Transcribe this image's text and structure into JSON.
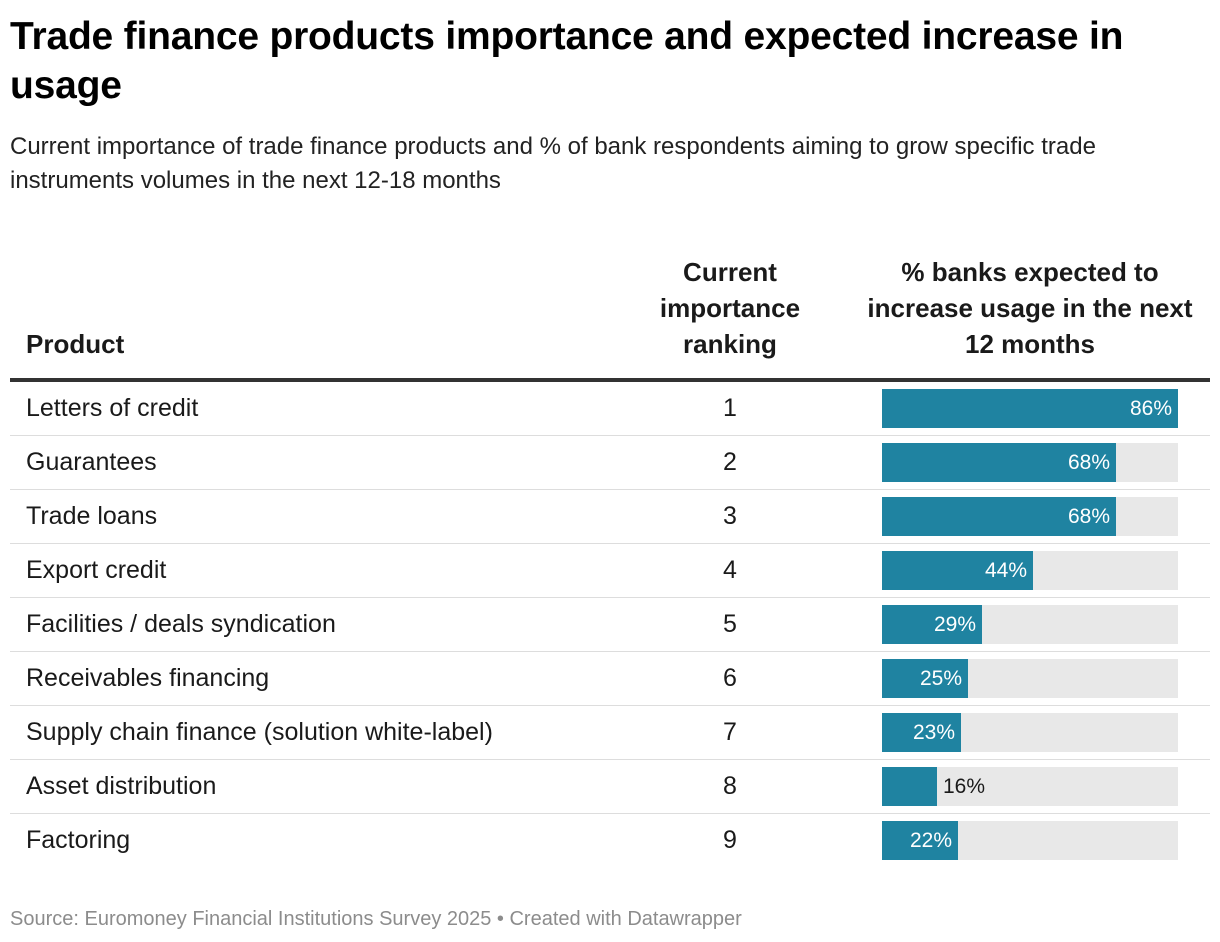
{
  "title": "Trade finance products importance and expected increase in usage",
  "subtitle": "Current importance of trade finance products and % of bank respondents aiming to grow specific trade instruments volumes in the next 12-18 months",
  "columns": {
    "product": "Product",
    "rank": "Current importance ranking",
    "pct": "% banks expected to increase usage in the next 12 months"
  },
  "colors": {
    "bar": "#1f83a1",
    "track": "#e8e8e8",
    "label_inside": "#ffffff",
    "label_outside": "#1a1a1a"
  },
  "chart_data": {
    "type": "table",
    "title": "Trade finance products importance and expected increase in usage",
    "subtitle": "Current importance of trade finance products and % of bank respondents aiming to grow specific trade instruments volumes in the next 12-18 months",
    "columns": [
      "Product",
      "Current importance ranking",
      "% banks expected to increase usage in the next 12 months"
    ],
    "bar_max": 86,
    "rows": [
      {
        "product": "Letters of credit",
        "rank": "1",
        "pct": 86,
        "label": "86%"
      },
      {
        "product": "Guarantees",
        "rank": "2",
        "pct": 68,
        "label": "68%"
      },
      {
        "product": "Trade loans",
        "rank": "3",
        "pct": 68,
        "label": "68%"
      },
      {
        "product": "Export credit",
        "rank": "4",
        "pct": 44,
        "label": "44%"
      },
      {
        "product": "Facilities / deals syndication",
        "rank": "5",
        "pct": 29,
        "label": "29%"
      },
      {
        "product": "Receivables financing",
        "rank": "6",
        "pct": 25,
        "label": "25%"
      },
      {
        "product": "Supply chain finance (solution white-label)",
        "rank": "7",
        "pct": 23,
        "label": "23%"
      },
      {
        "product": "Asset distribution",
        "rank": "8",
        "pct": 16,
        "label": "16%"
      },
      {
        "product": "Factoring",
        "rank": "9",
        "pct": 22,
        "label": "22%"
      }
    ]
  },
  "source": "Source: Euromoney Financial Institutions Survey 2025 • Created with Datawrapper"
}
